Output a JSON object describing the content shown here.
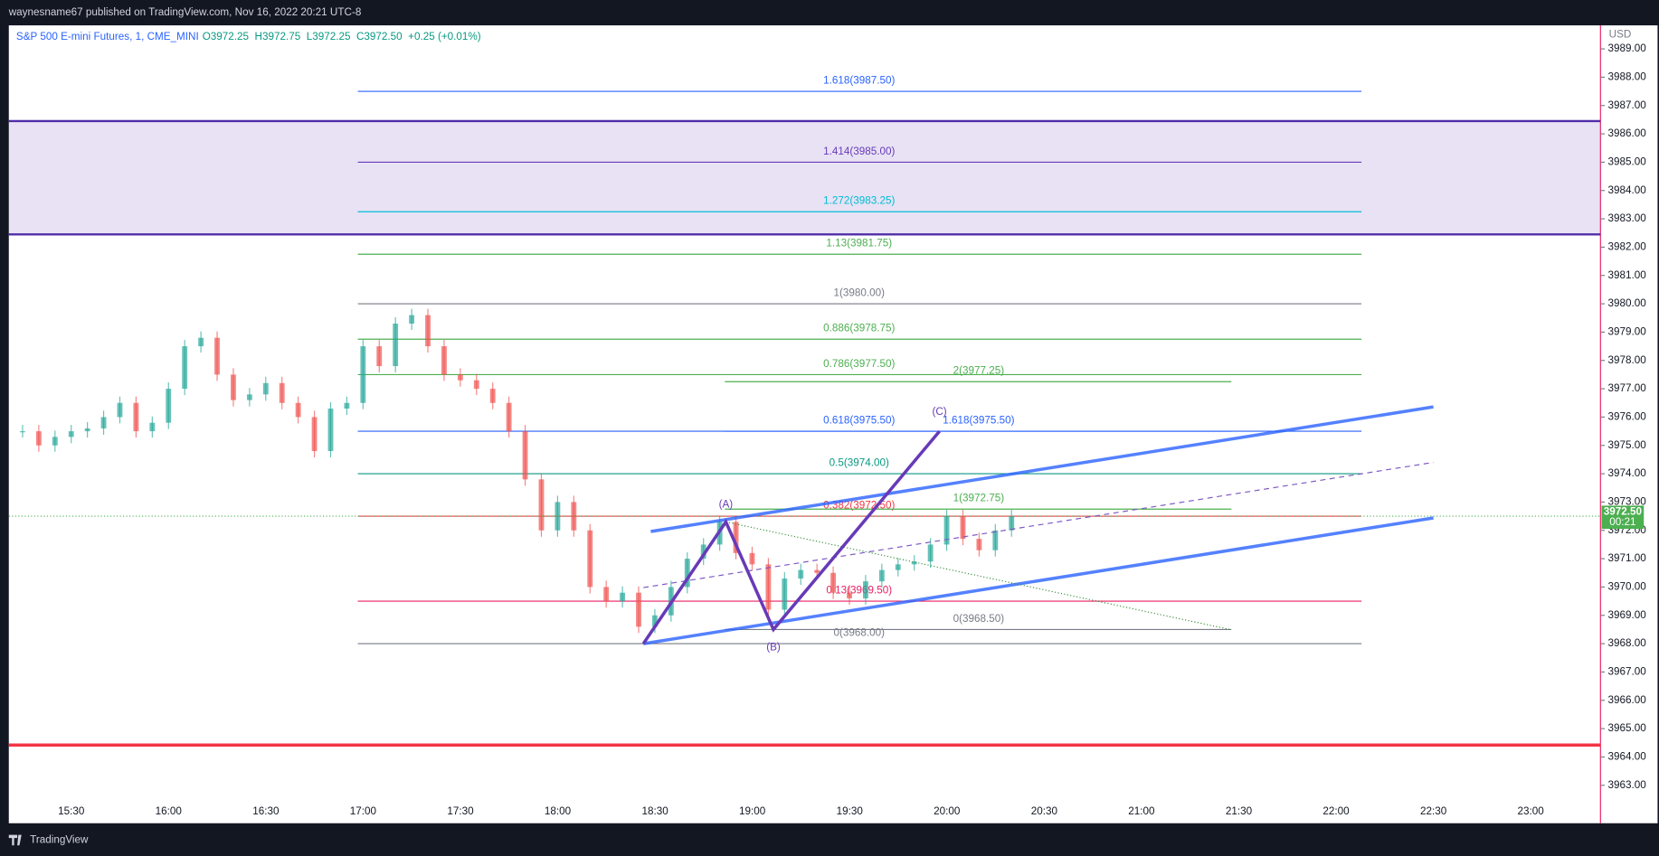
{
  "header": {
    "published": "waynesname67 published on TradingView.com, Nov 16, 2022 20:21 UTC-8"
  },
  "legend": {
    "symbol": "S&P 500 E-mini Futures, 1, CME_MINI",
    "ohlc": "O3972.25  H3972.75  L3972.25  C3972.50  +0.25 (+0.01%)"
  },
  "chart_data": {
    "type": "candlestick",
    "currency": "USD",
    "closes": [
      3975.5,
      3975.0,
      3975.3,
      3975.5,
      3975.6,
      3976.0,
      3976.5,
      3975.5,
      3975.8,
      3977.0,
      3978.5,
      3978.8,
      3977.5,
      3976.6,
      3976.8,
      3977.2,
      3976.5,
      3976.0,
      3974.8,
      3976.3,
      3976.5,
      3978.5,
      3977.8,
      3979.3,
      3979.6,
      3978.5,
      3977.5,
      3977.3,
      3977.0,
      3976.5,
      3975.5,
      3973.8,
      3972.0,
      3973.0,
      3972.0,
      3970.0,
      3969.5,
      3969.8,
      3968.6,
      3969.0,
      3970.0,
      3971.0,
      3971.5,
      3972.3,
      3971.2,
      3970.8,
      3969.2,
      3970.3,
      3970.6,
      3970.5,
      3969.8,
      3969.6,
      3970.2,
      3970.6,
      3970.8,
      3970.9,
      3971.5,
      3972.5,
      3971.7,
      3971.3,
      3972.0,
      3972.5
    ],
    "ylim": [
      3961.66,
      3989.83
    ],
    "yticks": [
      {
        "value": 3963,
        "label": "3963.00"
      },
      {
        "value": 3964,
        "label": "3964.00"
      },
      {
        "value": 3965,
        "label": "3965.00"
      },
      {
        "value": 3966,
        "label": "3966.00"
      },
      {
        "value": 3967,
        "label": "3967.00"
      },
      {
        "value": 3968,
        "label": "3968.00"
      },
      {
        "value": 3969,
        "label": "3969.00"
      },
      {
        "value": 3970,
        "label": "3970.00"
      },
      {
        "value": 3971,
        "label": "3971.00"
      },
      {
        "value": 3972,
        "label": "3972.00"
      },
      {
        "value": 3973,
        "label": "3973.00"
      },
      {
        "value": 3974,
        "label": "3974.00"
      },
      {
        "value": 3975,
        "label": "3975.00"
      },
      {
        "value": 3976,
        "label": "3976.00"
      },
      {
        "value": 3977,
        "label": "3977.00"
      },
      {
        "value": 3978,
        "label": "3978.00"
      },
      {
        "value": 3979,
        "label": "3979.00"
      },
      {
        "value": 3980,
        "label": "3980.00"
      },
      {
        "value": 3981,
        "label": "3981.00"
      },
      {
        "value": 3982,
        "label": "3982.00"
      },
      {
        "value": 3983,
        "label": "3983.00"
      },
      {
        "value": 3984,
        "label": "3984.00"
      },
      {
        "value": 3985,
        "label": "3985.00"
      },
      {
        "value": 3986,
        "label": "3986.00"
      },
      {
        "value": 3987,
        "label": "3987.00"
      },
      {
        "value": 3988,
        "label": "3988.00"
      },
      {
        "value": 3989,
        "label": "3989.00"
      }
    ],
    "xticks": [
      "15:30",
      "16:00",
      "16:30",
      "17:00",
      "17:30",
      "18:00",
      "18:30",
      "19:00",
      "19:30",
      "20:00",
      "20:30",
      "21:00",
      "21:30",
      "22:00",
      "22:30",
      "23:00"
    ],
    "fib_retracement": [
      {
        "label": "1.618(3987.50)",
        "price": 3987.5,
        "color": "#2962ff"
      },
      {
        "label": "1.414(3985.00)",
        "price": 3985.0,
        "color": "#673ab7"
      },
      {
        "label": "1.272(3983.25)",
        "price": 3983.25,
        "color": "#00bcd4"
      },
      {
        "label": "1.13(3981.75)",
        "price": 3981.75,
        "color": "#4caf50"
      },
      {
        "label": "1(3980.00)",
        "price": 3980.0,
        "color": "#787b86"
      },
      {
        "label": "0.886(3978.75)",
        "price": 3978.75,
        "color": "#4caf50"
      },
      {
        "label": "0.786(3977.50)",
        "price": 3977.5,
        "color": "#4caf50"
      },
      {
        "label": "0.618(3975.50)",
        "price": 3975.5,
        "color": "#2962ff"
      },
      {
        "label": "0.5(3974.00)",
        "price": 3974.0,
        "color": "#089981"
      },
      {
        "label": "0.382(3972.50)",
        "price": 3972.5,
        "color": "#f23645"
      },
      {
        "label": "0.13(3969.50)",
        "price": 3969.5,
        "color": "#e91e63"
      },
      {
        "label": "0(3968.00)",
        "price": 3968.0,
        "color": "#787b86"
      }
    ],
    "fib_extension": [
      {
        "label": "2(3977.25)",
        "price": 3977.25,
        "color": "#4caf50"
      },
      {
        "label": "1.618(3975.50)",
        "price": 3975.5,
        "color": "#2962ff"
      },
      {
        "label": "1(3972.75)",
        "price": 3972.75,
        "color": "#4caf50"
      },
      {
        "label": "0(3968.50)",
        "price": 3968.5,
        "color": "#787b86"
      }
    ],
    "zone": [
      3982.45,
      3986.45
    ],
    "support_line": 3964.42,
    "channel": {
      "upper": [
        3971.96,
        3976.36
      ],
      "middle": [
        3969.98,
        3974.4
      ],
      "lower": [
        3968.0,
        3972.44
      ]
    },
    "projection": [
      3972.3,
      3968.49
    ],
    "waves": [
      {
        "label": null,
        "price": 3968.0
      },
      {
        "label": "(A)",
        "price": 3972.3
      },
      {
        "label": "(B)",
        "price": 3968.5
      },
      {
        "label": "(C)",
        "price": 3975.5
      }
    ],
    "current_price": {
      "value": 3972.5,
      "label": "3972.50",
      "countdown": "00:21"
    }
  },
  "footer": {
    "brand": "TradingView"
  }
}
